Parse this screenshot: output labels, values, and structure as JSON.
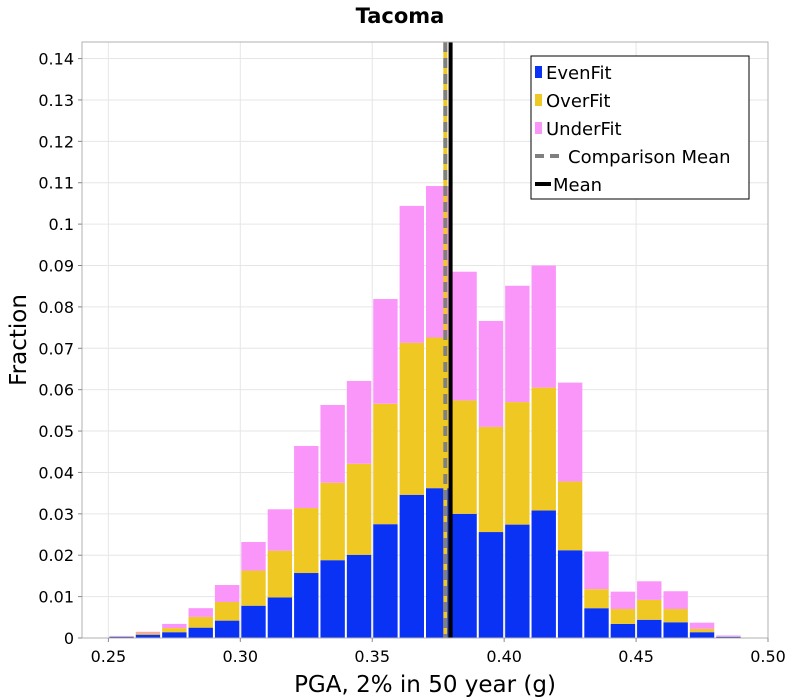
{
  "chart_data": {
    "type": "bar",
    "stacked": true,
    "title": "Tacoma",
    "xlabel": "PGA, 2% in 50 year (g)",
    "ylabel": "Fraction",
    "xlim": [
      0.24,
      0.5
    ],
    "ylim": [
      0,
      0.144
    ],
    "bin_width": 0.01,
    "x_ticks": [
      {
        "value": 0.25,
        "label": "0.25"
      },
      {
        "value": 0.3,
        "label": "0.30"
      },
      {
        "value": 0.35,
        "label": "0.35"
      },
      {
        "value": 0.4,
        "label": "0.40"
      },
      {
        "value": 0.45,
        "label": "0.45"
      },
      {
        "value": 0.5,
        "label": "0.50"
      }
    ],
    "y_ticks": [
      {
        "value": 0,
        "label": "0"
      },
      {
        "value": 0.01,
        "label": "0.01"
      },
      {
        "value": 0.02,
        "label": "0.02"
      },
      {
        "value": 0.03,
        "label": "0.03"
      },
      {
        "value": 0.04,
        "label": "0.04"
      },
      {
        "value": 0.05,
        "label": "0.05"
      },
      {
        "value": 0.06,
        "label": "0.06"
      },
      {
        "value": 0.07,
        "label": "0.07"
      },
      {
        "value": 0.08,
        "label": "0.08"
      },
      {
        "value": 0.09,
        "label": "0.09"
      },
      {
        "value": 0.1,
        "label": "0.1"
      },
      {
        "value": 0.11,
        "label": "0.11"
      },
      {
        "value": 0.12,
        "label": "0.12"
      },
      {
        "value": 0.13,
        "label": "0.13"
      },
      {
        "value": 0.14,
        "label": "0.14"
      }
    ],
    "x": [
      0.255,
      0.265,
      0.275,
      0.285,
      0.295,
      0.305,
      0.315,
      0.325,
      0.335,
      0.345,
      0.355,
      0.365,
      0.375,
      0.385,
      0.395,
      0.405,
      0.415,
      0.425,
      0.435,
      0.445,
      0.455,
      0.465,
      0.475,
      0.485
    ],
    "series": [
      {
        "name": "EvenFit",
        "color": "#0a32f5",
        "values": [
          0.0003,
          0.0008,
          0.0014,
          0.0025,
          0.0042,
          0.0078,
          0.0098,
          0.0157,
          0.0188,
          0.0201,
          0.0275,
          0.0346,
          0.0362,
          0.03,
          0.0256,
          0.0274,
          0.0308,
          0.0212,
          0.0072,
          0.0034,
          0.0044,
          0.0038,
          0.0014,
          0.0003
        ]
      },
      {
        "name": "OverFit",
        "color": "#f0c823",
        "values": [
          0.0001,
          0.0004,
          0.001,
          0.0026,
          0.0045,
          0.0085,
          0.0113,
          0.0157,
          0.0187,
          0.022,
          0.0291,
          0.0367,
          0.0364,
          0.0274,
          0.0254,
          0.0296,
          0.0297,
          0.0166,
          0.0046,
          0.0036,
          0.0048,
          0.0032,
          0.0008,
          0.0001
        ]
      },
      {
        "name": "UnderFit",
        "color": "#fa96fa",
        "values": [
          0.0001,
          0.0003,
          0.001,
          0.0021,
          0.0041,
          0.0069,
          0.01,
          0.015,
          0.0188,
          0.02,
          0.0253,
          0.0331,
          0.0366,
          0.0311,
          0.0256,
          0.0281,
          0.0295,
          0.0239,
          0.0091,
          0.0042,
          0.0045,
          0.0043,
          0.0015,
          0.0002
        ]
      }
    ],
    "reference_lines": [
      {
        "name": "Comparison Mean",
        "x": 0.3777,
        "style": "dashed",
        "color": "#808080",
        "under_color": "#f0c823"
      },
      {
        "name": "Mean",
        "x": 0.3797,
        "style": "solid",
        "color": "#000000"
      }
    ],
    "legend": {
      "position": "top-right",
      "entries": [
        {
          "label": "EvenFit",
          "kind": "box",
          "color": "#0a32f5"
        },
        {
          "label": "OverFit",
          "kind": "box",
          "color": "#f0c823"
        },
        {
          "label": "UnderFit",
          "kind": "box",
          "color": "#fa96fa"
        },
        {
          "label": "Comparison Mean",
          "kind": "dashed",
          "color": "#808080"
        },
        {
          "label": "Mean",
          "kind": "solid",
          "color": "#000000"
        }
      ]
    },
    "grid": true
  }
}
